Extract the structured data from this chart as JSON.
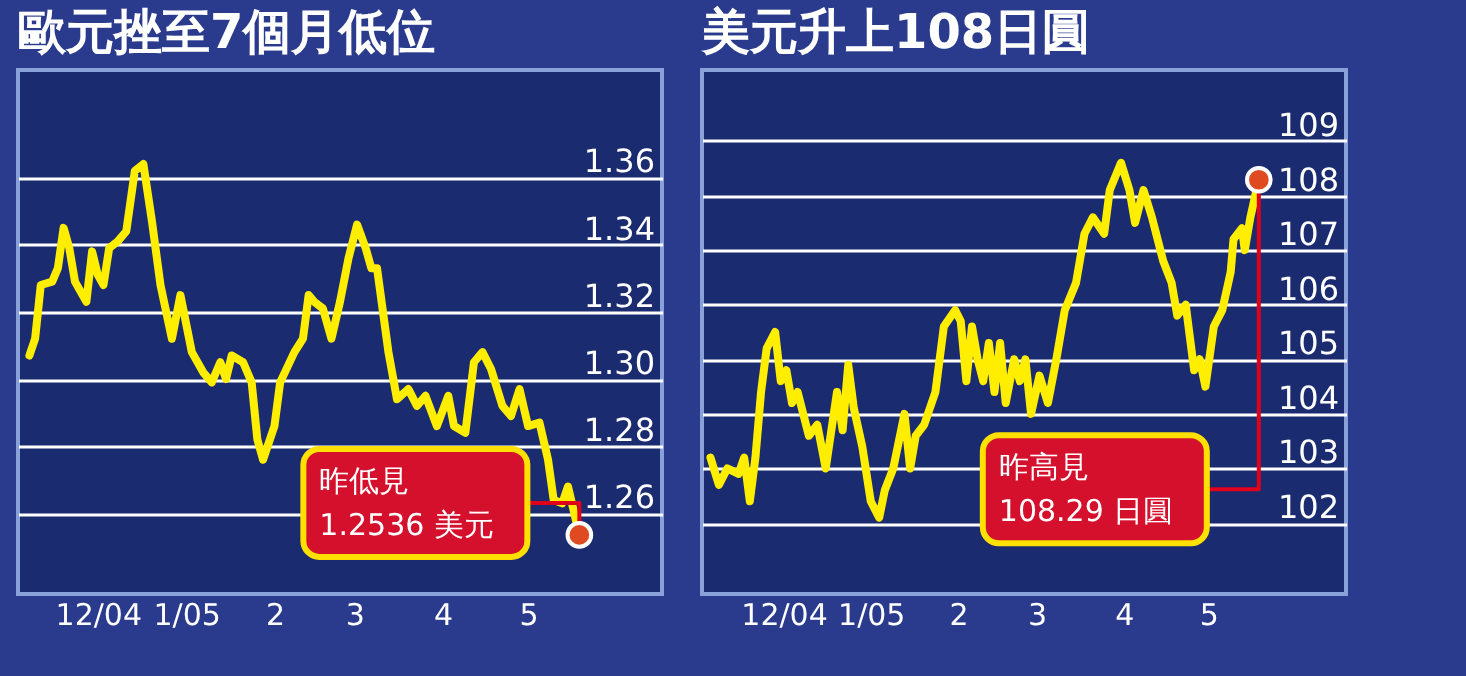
{
  "chart_data": [
    {
      "type": "line",
      "title": "歐元挫至7個月低位",
      "x": [
        "2004-11-07",
        "2004-11-09",
        "2004-11-11",
        "2004-11-15",
        "2004-11-17",
        "2004-11-19",
        "2004-11-21",
        "2004-11-23",
        "2004-11-27",
        "2004-11-29",
        "2004-12-01",
        "2004-12-03",
        "2004-12-05",
        "2004-12-08",
        "2004-12-11",
        "2004-12-14",
        "2004-12-17",
        "2004-12-20",
        "2004-12-23",
        "2004-12-27",
        "2004-12-30",
        "2005-01-03",
        "2005-01-07",
        "2005-01-10",
        "2005-01-13",
        "2005-01-15",
        "2005-01-17",
        "2005-01-21",
        "2005-01-24",
        "2005-01-26",
        "2005-01-28",
        "2005-02-01",
        "2005-02-03",
        "2005-02-08",
        "2005-02-11",
        "2005-02-13",
        "2005-02-15",
        "2005-02-18",
        "2005-02-21",
        "2005-02-24",
        "2005-02-27",
        "2005-03-02",
        "2005-03-05",
        "2005-03-07",
        "2005-03-09",
        "2005-03-13",
        "2005-03-16",
        "2005-03-20",
        "2005-03-23",
        "2005-03-26",
        "2005-03-30",
        "2005-04-03",
        "2005-04-05",
        "2005-04-09",
        "2005-04-12",
        "2005-04-15",
        "2005-04-18",
        "2005-04-22",
        "2005-04-25",
        "2005-04-28",
        "2005-05-01",
        "2005-05-05",
        "2005-05-08",
        "2005-05-10",
        "2005-05-13",
        "2005-05-15",
        "2005-05-19"
      ],
      "series": [
        {
          "color": "#ffee00",
          "values": [
            1.307,
            1.312,
            1.328,
            1.329,
            1.333,
            1.345,
            1.339,
            1.329,
            1.323,
            1.338,
            1.331,
            1.328,
            1.339,
            1.341,
            1.344,
            1.362,
            1.364,
            1.347,
            1.328,
            1.312,
            1.325,
            1.308,
            1.302,
            1.299,
            1.305,
            1.3,
            1.307,
            1.305,
            1.299,
            1.282,
            1.276,
            1.286,
            1.299,
            1.308,
            1.312,
            1.325,
            1.323,
            1.321,
            1.312,
            1.323,
            1.336,
            1.346,
            1.339,
            1.333,
            1.333,
            1.308,
            1.294,
            1.297,
            1.292,
            1.295,
            1.286,
            1.295,
            1.286,
            1.284,
            1.305,
            1.308,
            1.303,
            1.292,
            1.289,
            1.297,
            1.286,
            1.287,
            1.276,
            1.264,
            1.263,
            1.268,
            1.2536
          ]
        }
      ],
      "xlim": [
        "2004-11-03",
        "2005-06-17"
      ],
      "xticks": [
        {
          "value": "2004-12",
          "label": "12/04"
        },
        {
          "value": "2005-01",
          "label": "1/05"
        },
        {
          "value": "2005-02",
          "label": "2"
        },
        {
          "value": "2005-03",
          "label": "3"
        },
        {
          "value": "2005-04",
          "label": "4"
        },
        {
          "value": "2005-05",
          "label": "5"
        }
      ],
      "ylim": [
        1.236,
        1.392
      ],
      "yticks": [
        {
          "value": 1.26,
          "label": "1.26"
        },
        {
          "value": 1.28,
          "label": "1.28"
        },
        {
          "value": 1.3,
          "label": "1.30"
        },
        {
          "value": 1.32,
          "label": "1.32"
        },
        {
          "value": 1.34,
          "label": "1.34"
        },
        {
          "value": 1.36,
          "label": "1.36"
        }
      ],
      "grid": "y",
      "annotations": [
        {
          "text": "昨低見\n1.2536 美元",
          "x": "2005-05-19",
          "y": 1.2536
        }
      ]
    },
    {
      "type": "line",
      "title": "美元升上108日圓",
      "x": [
        "2004-11-05",
        "2004-11-08",
        "2004-11-11",
        "2004-11-15",
        "2004-11-17",
        "2004-11-19",
        "2004-11-21",
        "2004-11-23",
        "2004-11-25",
        "2004-11-28",
        "2004-11-30",
        "2004-12-02",
        "2004-12-04",
        "2004-12-06",
        "2004-12-10",
        "2004-12-13",
        "2004-12-16",
        "2004-12-20",
        "2004-12-22",
        "2004-12-24",
        "2004-12-26",
        "2004-12-29",
        "2005-01-01",
        "2005-01-04",
        "2005-01-06",
        "2005-01-09",
        "2005-01-13",
        "2005-01-15",
        "2005-01-17",
        "2005-01-20",
        "2005-01-24",
        "2005-01-27",
        "2005-01-31",
        "2005-02-02",
        "2005-02-04",
        "2005-02-06",
        "2005-02-08",
        "2005-02-10",
        "2005-02-12",
        "2005-02-14",
        "2005-02-16",
        "2005-02-18",
        "2005-02-21",
        "2005-02-23",
        "2005-02-25",
        "2005-02-27",
        "2005-03-02",
        "2005-03-05",
        "2005-03-08",
        "2005-03-11",
        "2005-03-15",
        "2005-03-18",
        "2005-03-21",
        "2005-03-25",
        "2005-03-27",
        "2005-03-31",
        "2005-04-03",
        "2005-04-05",
        "2005-04-08",
        "2005-04-11",
        "2005-04-15",
        "2005-04-18",
        "2005-04-20",
        "2005-04-23",
        "2005-04-26",
        "2005-04-28",
        "2005-04-30",
        "2005-05-03",
        "2005-05-06",
        "2005-05-09",
        "2005-05-10",
        "2005-05-13",
        "2005-05-14",
        "2005-05-16",
        "2005-05-19"
      ],
      "series": [
        {
          "color": "#ffee00",
          "values": [
            103.2,
            102.7,
            103.0,
            102.9,
            103.2,
            102.4,
            103.2,
            104.4,
            105.2,
            105.5,
            104.6,
            104.8,
            104.2,
            104.4,
            103.6,
            103.8,
            103.0,
            104.4,
            103.7,
            104.9,
            104.1,
            103.4,
            102.4,
            102.1,
            102.6,
            103.0,
            104.0,
            103.0,
            103.6,
            103.8,
            104.4,
            105.6,
            105.9,
            105.7,
            104.6,
            105.6,
            105.0,
            104.6,
            105.3,
            104.4,
            105.3,
            104.2,
            105.0,
            104.6,
            105.0,
            104.0,
            104.7,
            104.2,
            105.0,
            105.9,
            106.4,
            107.3,
            107.6,
            107.3,
            108.1,
            108.6,
            108.1,
            107.5,
            108.1,
            107.6,
            106.8,
            106.4,
            105.8,
            106.0,
            104.8,
            105.0,
            104.5,
            105.6,
            105.9,
            106.6,
            107.2,
            107.4,
            107.0,
            107.6,
            108.29
          ]
        }
      ],
      "xlim": [
        "2004-11-02",
        "2005-06-19"
      ],
      "xticks": [
        {
          "value": "2004-12",
          "label": "12/04"
        },
        {
          "value": "2005-01",
          "label": "1/05"
        },
        {
          "value": "2005-02",
          "label": "2"
        },
        {
          "value": "2005-03",
          "label": "3"
        },
        {
          "value": "2005-04",
          "label": "4"
        },
        {
          "value": "2005-05",
          "label": "5"
        }
      ],
      "ylim": [
        100.7,
        110.3
      ],
      "yticks": [
        102,
        103,
        104,
        105,
        106,
        107,
        108,
        109
      ],
      "grid": "y",
      "annotations": [
        {
          "text": "昨高見\n108.29 日圓",
          "x": "2005-05-19",
          "y": 108.29
        }
      ]
    }
  ]
}
